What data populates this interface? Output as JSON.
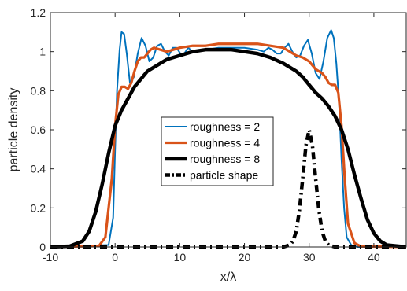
{
  "chart_data": {
    "type": "line",
    "xlabel": "x/λ",
    "ylabel": "particle density",
    "xlim": [
      -10,
      45
    ],
    "ylim": [
      0,
      1.2
    ],
    "xticks": [
      -10,
      0,
      10,
      20,
      30,
      40
    ],
    "xtick_labels": [
      "-10",
      "0",
      "10",
      "20",
      "30",
      "40"
    ],
    "yticks": [
      0,
      0.2,
      0.4,
      0.6,
      0.8,
      1.0,
      1.2
    ],
    "ytick_labels": [
      "0",
      "0.2",
      "0.4",
      "0.6",
      "0.8",
      "1",
      "1.2"
    ],
    "grid": false,
    "legend_position": "center",
    "series": [
      {
        "name": "roughness = 2",
        "color": "#0072BD",
        "style": "solid",
        "weight": "thin",
        "x": [
          -10,
          -1,
          -0.3,
          0,
          0.3,
          0.7,
          1.0,
          1.4,
          1.8,
          2.3,
          2.9,
          3.5,
          4.1,
          4.7,
          5.3,
          5.9,
          6.5,
          7.1,
          7.7,
          8.3,
          8.9,
          9.5,
          10.1,
          10.7,
          11.3,
          12,
          14,
          16,
          18,
          20,
          22,
          23,
          23.7,
          24.3,
          25,
          25.6,
          26.2,
          26.8,
          27.4,
          28,
          28.6,
          29.2,
          29.8,
          30.4,
          31,
          31.6,
          32.2,
          32.8,
          33.4,
          33.8,
          34.2,
          34.6,
          35,
          35.4,
          35.8,
          36.5,
          37.5,
          45
        ],
        "y": [
          0,
          0.01,
          0.15,
          0.5,
          0.8,
          1.01,
          1.1,
          1.09,
          0.99,
          0.84,
          0.87,
          0.99,
          1.07,
          1.03,
          0.95,
          0.97,
          1.03,
          1.04,
          1.0,
          0.98,
          1.02,
          1.02,
          0.99,
          0.99,
          1.02,
          1.0,
          1.01,
          1.02,
          1.02,
          1.02,
          1.01,
          1.0,
          1.02,
          1.01,
          0.99,
          0.99,
          1.02,
          1.04,
          1.0,
          0.97,
          0.98,
          1.03,
          1.06,
          0.99,
          0.89,
          0.86,
          0.95,
          1.07,
          1.11,
          1.07,
          0.94,
          0.75,
          0.45,
          0.2,
          0.05,
          0.01,
          0,
          0
        ]
      },
      {
        "name": "roughness = 4",
        "color": "#D95319",
        "style": "solid",
        "weight": "medium",
        "x": [
          -10,
          -2.5,
          -1.5,
          -0.5,
          0,
          0.5,
          1,
          1.5,
          2,
          2.5,
          3,
          3.5,
          4,
          4.5,
          5,
          5.5,
          6,
          7,
          8,
          9,
          10,
          12,
          14,
          16,
          18,
          20,
          22,
          24,
          26,
          27,
          28,
          29,
          29.5,
          30,
          30.5,
          31,
          32,
          32.5,
          33,
          33.5,
          34,
          34.5,
          35,
          35.5,
          36,
          37,
          38,
          45
        ],
        "y": [
          0,
          0.005,
          0.05,
          0.35,
          0.62,
          0.78,
          0.82,
          0.82,
          0.81,
          0.84,
          0.9,
          0.95,
          0.97,
          0.97,
          0.99,
          1.01,
          1.02,
          1.01,
          1.0,
          1.01,
          1.02,
          1.03,
          1.03,
          1.04,
          1.04,
          1.04,
          1.04,
          1.03,
          1.02,
          1.0,
          0.98,
          0.97,
          0.96,
          0.95,
          0.93,
          0.91,
          0.89,
          0.87,
          0.84,
          0.83,
          0.83,
          0.79,
          0.62,
          0.35,
          0.12,
          0.02,
          0.003,
          0
        ]
      },
      {
        "name": "roughness = 8",
        "color": "#000000",
        "style": "solid",
        "weight": "thick",
        "x": [
          -10,
          -7,
          -5,
          -4,
          -3,
          -2,
          -1,
          0,
          1,
          2,
          3,
          4,
          5,
          6,
          7,
          8,
          9,
          10,
          12,
          14,
          16,
          18,
          20,
          22,
          24,
          26,
          28,
          29,
          30,
          31,
          32,
          33,
          34,
          35,
          36,
          37,
          38,
          39,
          40,
          41,
          42,
          45
        ],
        "y": [
          0,
          0.004,
          0.03,
          0.08,
          0.18,
          0.32,
          0.48,
          0.62,
          0.7,
          0.76,
          0.82,
          0.86,
          0.9,
          0.92,
          0.94,
          0.96,
          0.97,
          0.98,
          1.0,
          1.01,
          1.01,
          1.01,
          1.0,
          0.99,
          0.97,
          0.94,
          0.9,
          0.87,
          0.83,
          0.79,
          0.76,
          0.72,
          0.67,
          0.6,
          0.5,
          0.37,
          0.25,
          0.14,
          0.07,
          0.03,
          0.01,
          0
        ]
      },
      {
        "name": "particle shape",
        "color": "#000000",
        "style": "dashdot",
        "weight": "thick",
        "x": [
          -10,
          26,
          27,
          27.5,
          28,
          28.5,
          29,
          29.5,
          30,
          30.5,
          31,
          31.5,
          32,
          32.5,
          33,
          34,
          45
        ],
        "y": [
          0,
          0,
          0.01,
          0.03,
          0.08,
          0.19,
          0.35,
          0.52,
          0.6,
          0.52,
          0.35,
          0.19,
          0.08,
          0.03,
          0.01,
          0,
          0
        ]
      }
    ]
  }
}
